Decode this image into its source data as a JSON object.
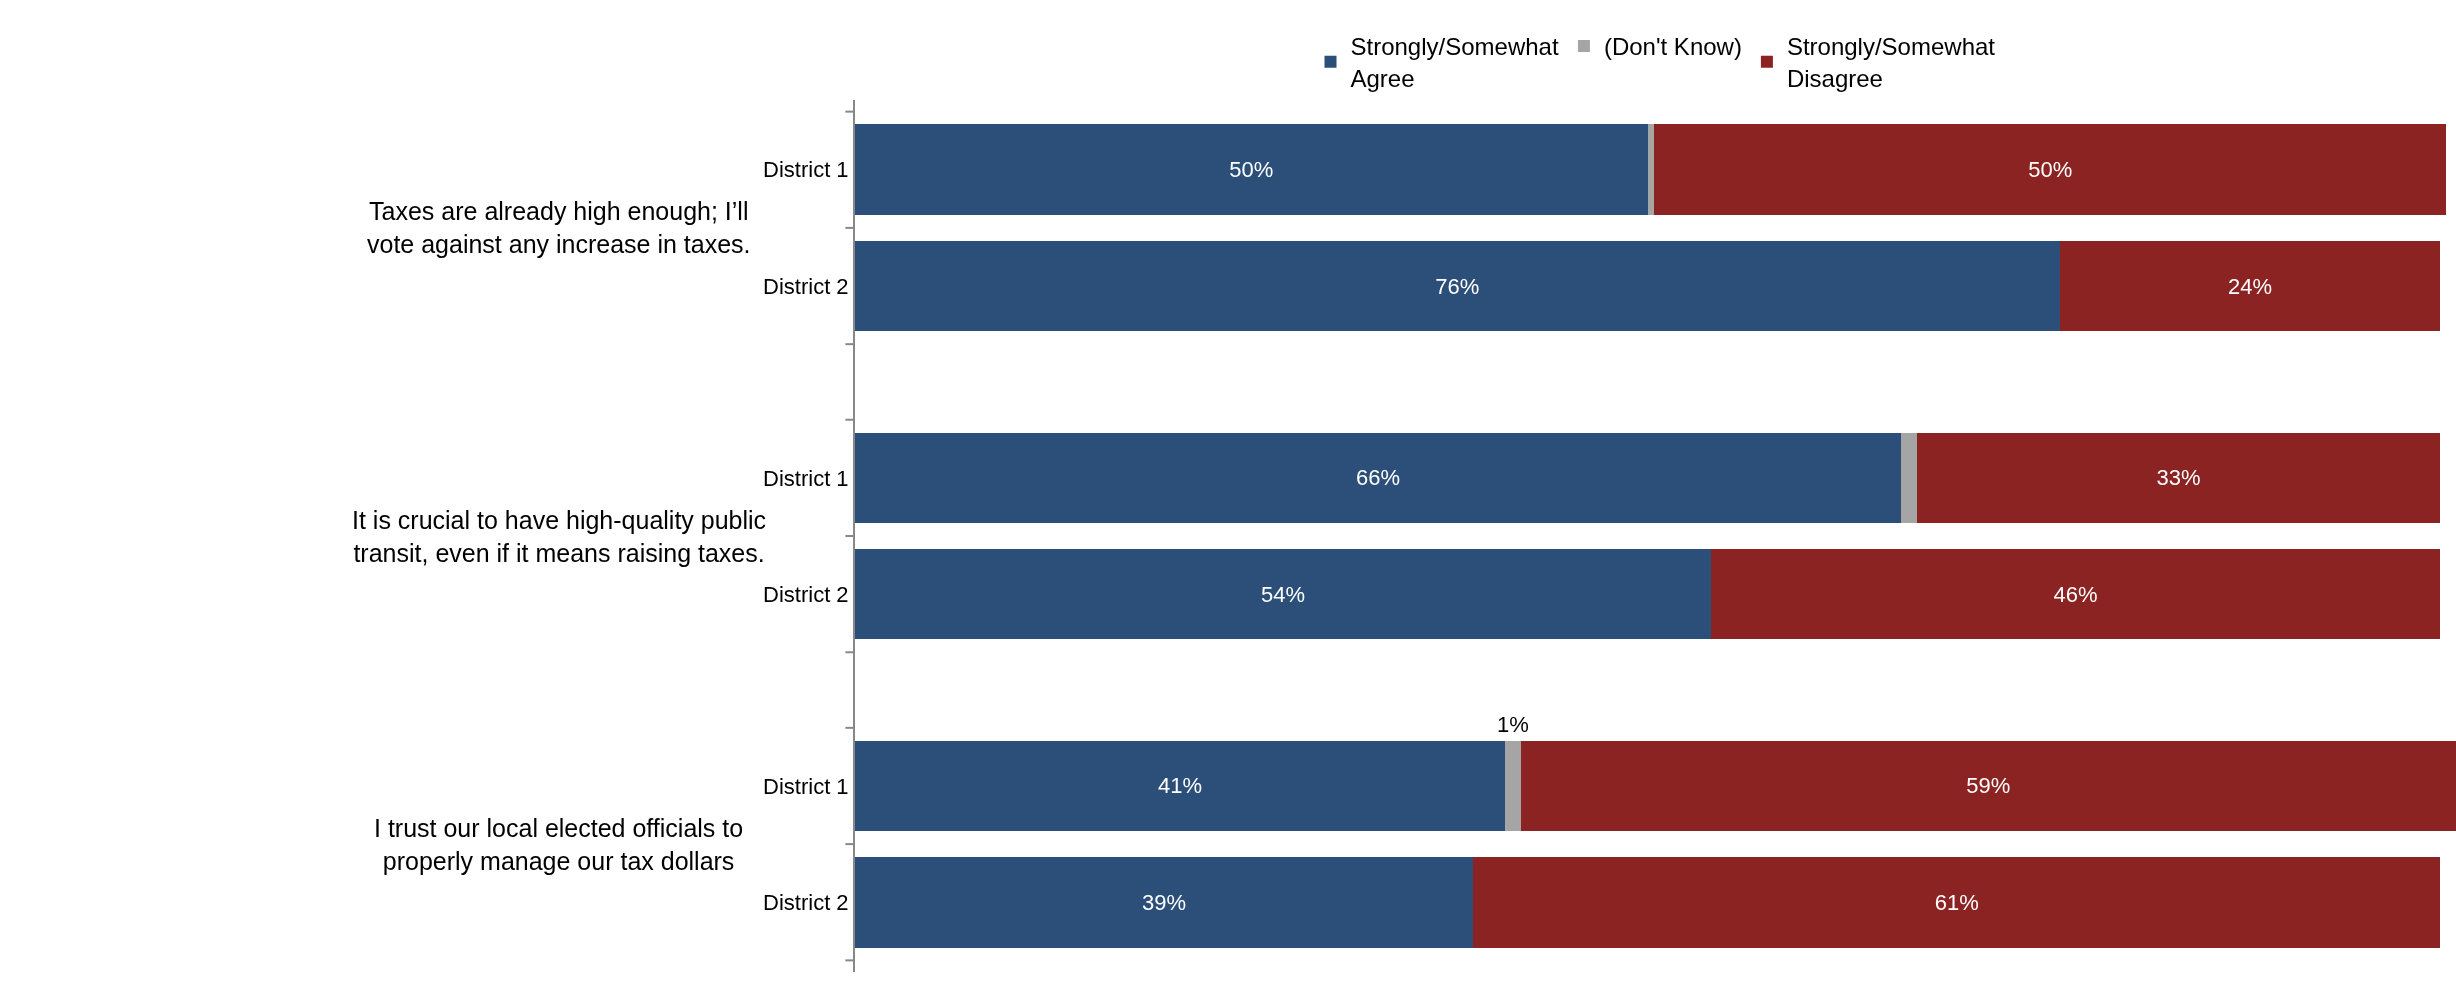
{
  "chart_data": {
    "type": "bar",
    "orientation": "horizontal",
    "stacked": true,
    "legend": "top",
    "categories": [
      "District 1",
      "District 2",
      "District 1",
      "District 2",
      "District 1",
      "District 2"
    ],
    "series": [
      {
        "name": "Strongly/Somewhat\nAgree",
        "color": "#2b4f78",
        "values": [
          50,
          76,
          66,
          54,
          41,
          39
        ],
        "value_labels": [
          "50%",
          "76%",
          "66%",
          "54%",
          "41%",
          "39%"
        ]
      },
      {
        "name": "(Don't Know)",
        "color": "#a5a5a5",
        "values": [
          0.4,
          null,
          1,
          null,
          1,
          null
        ],
        "value_labels": [
          null,
          null,
          null,
          null,
          "1%",
          null
        ]
      },
      {
        "name": "Strongly/Somewhat\nDisagree",
        "color": "#8b2322",
        "values": [
          50,
          24,
          33,
          46,
          59,
          61
        ],
        "value_labels": [
          "50%",
          "24%",
          "33%",
          "46%",
          "59%",
          "61%"
        ]
      }
    ],
    "annotations": [
      "Taxes are already high enough; I’ll\nvote against any increase in taxes.",
      "It is crucial to have high-quality public\ntransit, even if it means raising taxes.",
      "I trust our local elected officials to\nproperly manage our tax dollars"
    ]
  }
}
